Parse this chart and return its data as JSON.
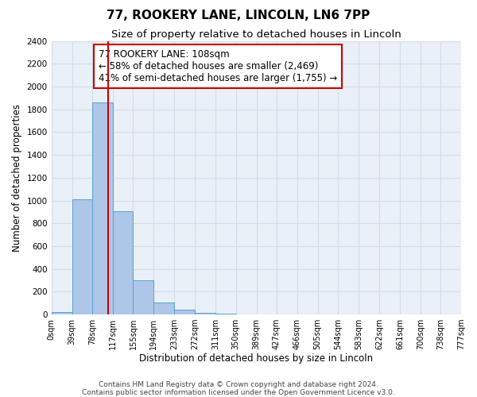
{
  "title": "77, ROOKERY LANE, LINCOLN, LN6 7PP",
  "subtitle": "Size of property relative to detached houses in Lincoln",
  "xlabel": "Distribution of detached houses by size in Lincoln",
  "ylabel": "Number of detached properties",
  "bin_edges": [
    0,
    39,
    78,
    117,
    155,
    194,
    233,
    272,
    311,
    350,
    389,
    427,
    466,
    505,
    544,
    583,
    622,
    661,
    700,
    738,
    777
  ],
  "bar_heights": [
    20,
    1010,
    1860,
    905,
    300,
    105,
    45,
    15,
    10,
    0,
    0,
    0,
    0,
    0,
    0,
    0,
    0,
    0,
    0,
    0
  ],
  "tick_labels": [
    "0sqm",
    "39sqm",
    "78sqm",
    "117sqm",
    "155sqm",
    "194sqm",
    "233sqm",
    "272sqm",
    "311sqm",
    "350sqm",
    "389sqm",
    "427sqm",
    "466sqm",
    "505sqm",
    "544sqm",
    "583sqm",
    "622sqm",
    "661sqm",
    "700sqm",
    "738sqm",
    "777sqm"
  ],
  "bar_color": "#aec6e8",
  "bar_edge_color": "#5a9fd4",
  "property_line_x": 108,
  "property_line_color": "#cc0000",
  "annotation_line1": "77 ROOKERY LANE: 108sqm",
  "annotation_line2": "← 58% of detached houses are smaller (2,469)",
  "annotation_line3": "41% of semi-detached houses are larger (1,755) →",
  "ylim": [
    0,
    2400
  ],
  "yticks": [
    0,
    200,
    400,
    600,
    800,
    1000,
    1200,
    1400,
    1600,
    1800,
    2000,
    2200,
    2400
  ],
  "grid_color": "#d0dde8",
  "background_color": "#eaf0f7",
  "footer_line1": "Contains HM Land Registry data © Crown copyright and database right 2024.",
  "footer_line2": "Contains public sector information licensed under the Open Government Licence v3.0.",
  "title_fontsize": 11,
  "subtitle_fontsize": 9.5,
  "axis_label_fontsize": 8.5,
  "tick_label_fontsize": 7,
  "annotation_fontsize": 8.5,
  "footer_fontsize": 6.5
}
